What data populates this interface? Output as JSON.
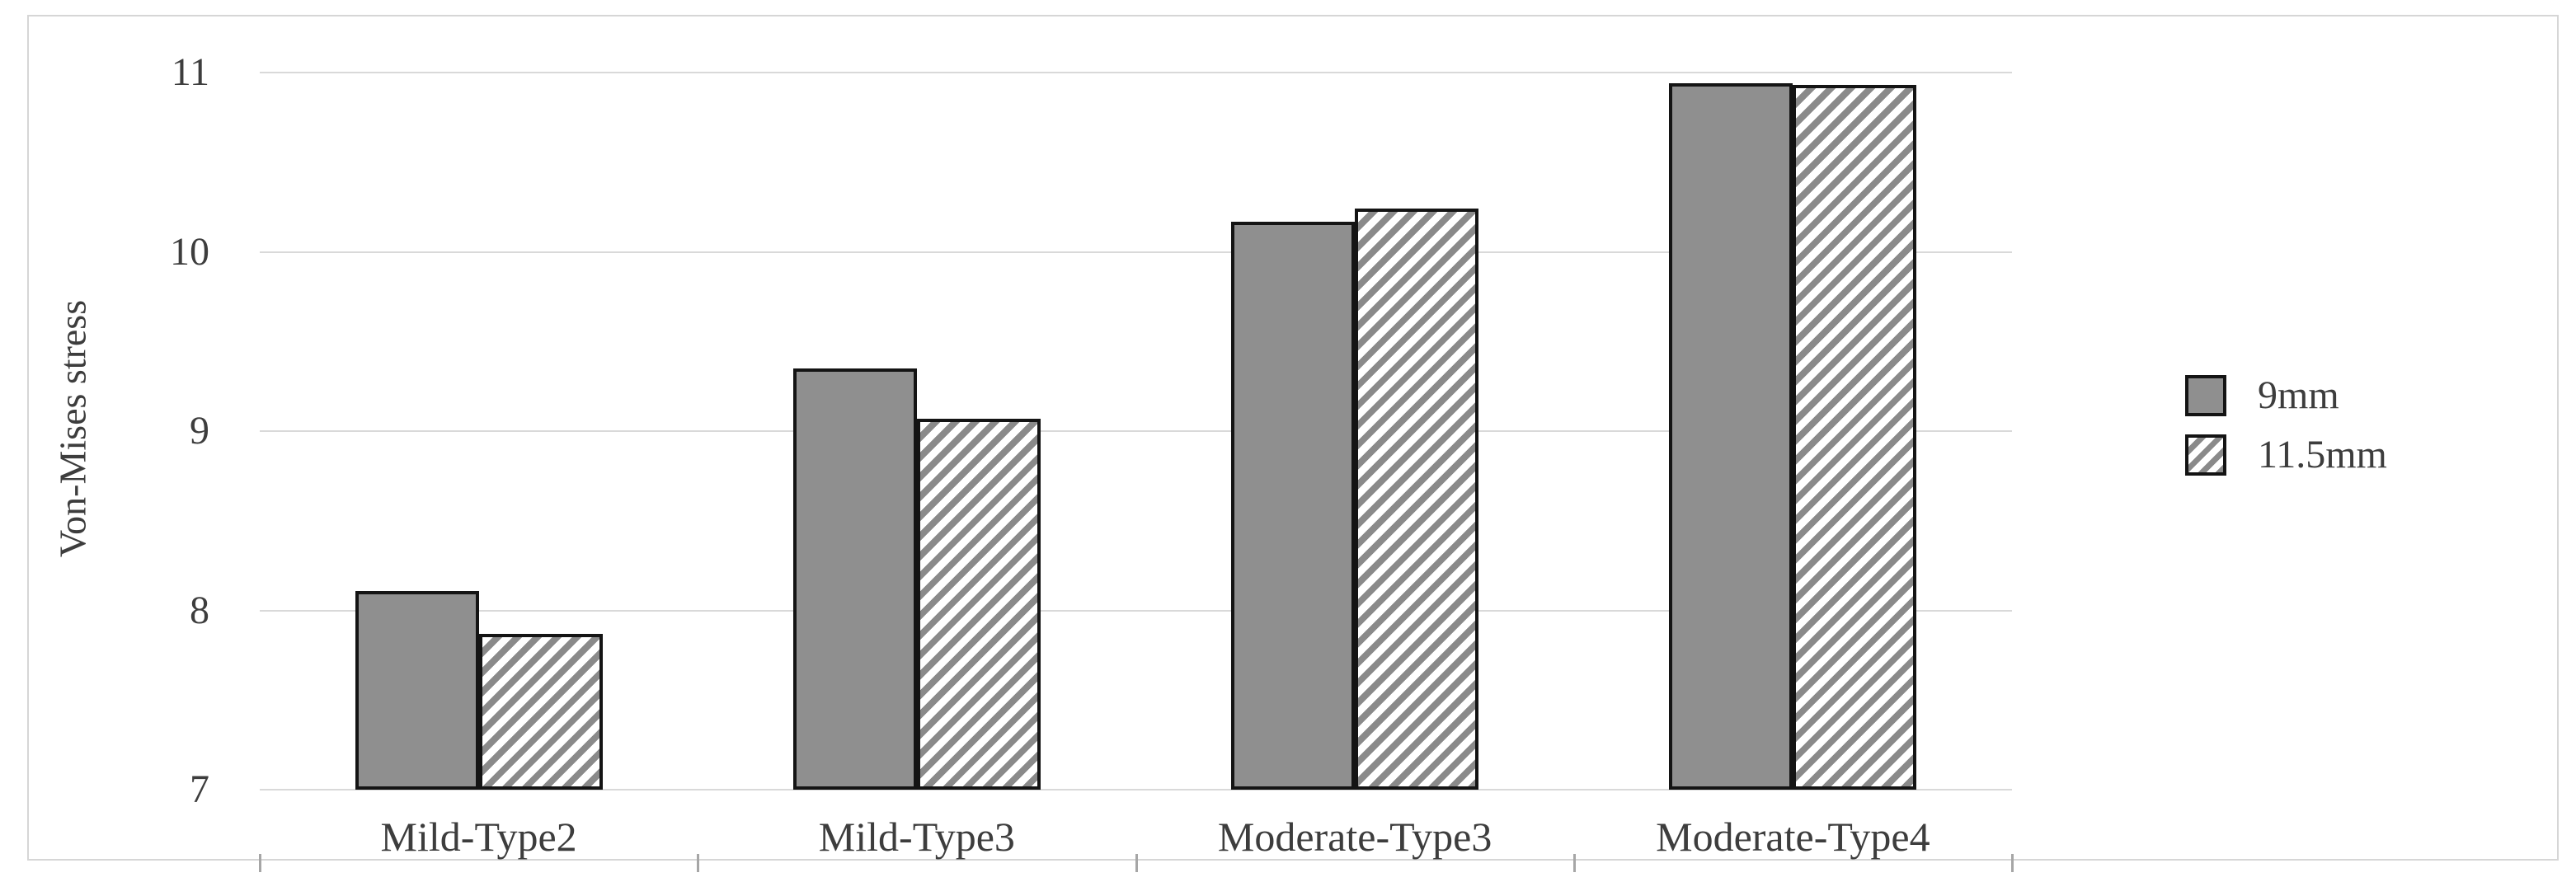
{
  "chart_data": {
    "type": "bar",
    "title": "",
    "categories": [
      "Mild-Type2",
      "Mild-Type3",
      "Moderate-Type3",
      "Moderate-Type4"
    ],
    "series": [
      {
        "name": "9mm",
        "style": "solid",
        "values": [
          8.11,
          9.35,
          10.17,
          10.94
        ]
      },
      {
        "name": "11.5mm",
        "style": "hatch",
        "values": [
          7.87,
          9.07,
          10.24,
          10.93
        ]
      }
    ],
    "xlabel": "",
    "ylabel": "Von-Mises stress",
    "ylim": [
      7,
      11
    ],
    "yticks": [
      7,
      8,
      9,
      10,
      11
    ],
    "grid": true,
    "legend_position": "right-center"
  },
  "colors": {
    "bar_fill": "#8f8f8f",
    "bar_border": "#141414",
    "hatch_stripe": "#8a8a8a",
    "gridline": "#d9d9d9",
    "chart_border": "#d6d6d6",
    "text": "#3d3d3d",
    "background": "#ffffff"
  }
}
